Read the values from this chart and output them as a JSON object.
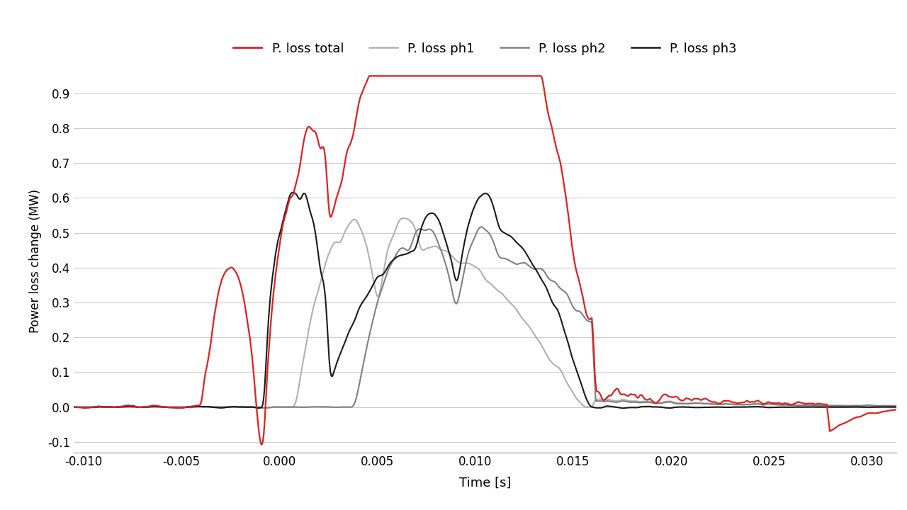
{
  "xlabel": "Time [s]",
  "ylabel": "Power loss change (MW)",
  "xlim": [
    -0.0105,
    0.0315
  ],
  "ylim": [
    -0.13,
    0.97
  ],
  "yticks": [
    -0.1,
    0.0,
    0.1,
    0.2,
    0.3,
    0.4,
    0.5,
    0.6,
    0.7,
    0.8,
    0.9
  ],
  "xticks": [
    -0.01,
    -0.005,
    0.0,
    0.005,
    0.01,
    0.015,
    0.02,
    0.025,
    0.03
  ],
  "color_total": "#e02020",
  "color_ph1": "#b0b0b0",
  "color_ph2": "#808080",
  "color_ph3": "#1a1a1a",
  "lw_total": 1.6,
  "lw_ph": 1.5,
  "legend_labels": [
    "P. loss total",
    "P. loss ph1",
    "P. loss ph2",
    "P. loss ph3"
  ],
  "bg_color": "#ffffff",
  "grid_color": "#cccccc"
}
